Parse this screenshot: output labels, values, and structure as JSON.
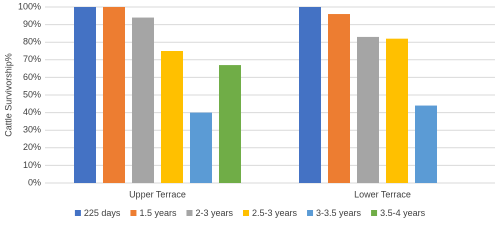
{
  "chart_data": {
    "type": "bar",
    "y_label": "Cattle Survivorship%",
    "categories": [
      "Upper Terrace",
      "Lower Terrace"
    ],
    "series": [
      {
        "name": "225 days",
        "color": "#4472c4",
        "values": [
          100,
          100
        ]
      },
      {
        "name": "1.5 years",
        "color": "#ed7d31",
        "values": [
          100,
          96
        ]
      },
      {
        "name": "2-3 years",
        "color": "#a5a5a5",
        "values": [
          94,
          83
        ]
      },
      {
        "name": "2.5-3 years",
        "color": "#ffc000",
        "values": [
          75,
          82
        ]
      },
      {
        "name": "3-3.5 years",
        "color": "#5b9bd5",
        "values": [
          40,
          44
        ]
      },
      {
        "name": "3.5-4 years",
        "color": "#70ad47",
        "values": [
          67,
          null
        ]
      }
    ],
    "ylim": [
      0,
      100
    ],
    "yticks": [
      {
        "value": 0,
        "label": "0%"
      },
      {
        "value": 10,
        "label": "10%"
      },
      {
        "value": 20,
        "label": "20%"
      },
      {
        "value": 30,
        "label": "30%"
      },
      {
        "value": 40,
        "label": "40%"
      },
      {
        "value": 50,
        "label": "50%"
      },
      {
        "value": 60,
        "label": "60%"
      },
      {
        "value": 70,
        "label": "70%"
      },
      {
        "value": 80,
        "label": "80%"
      },
      {
        "value": 90,
        "label": "90%"
      },
      {
        "value": 100,
        "label": "100%"
      }
    ],
    "grid": true,
    "legend": "bottom"
  }
}
